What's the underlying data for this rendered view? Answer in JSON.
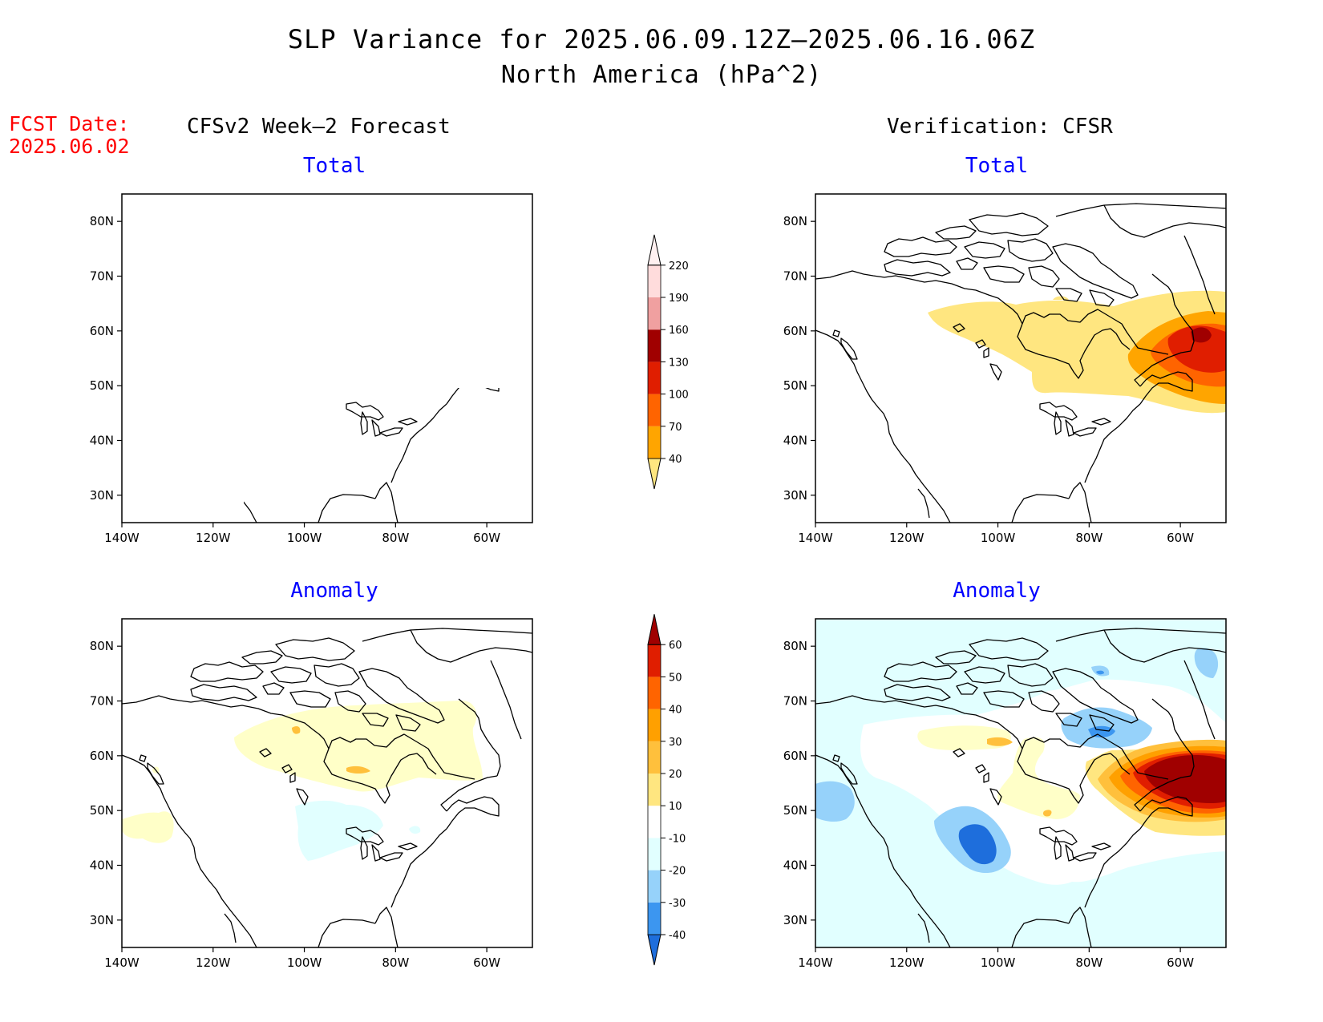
{
  "title_line1": "SLP Variance for 2025.06.09.12Z—2025.06.16.06Z",
  "title_line2": "North America (hPa^2)",
  "fcst_label": "FCST Date:",
  "fcst_date": "2025.06.02",
  "columns": {
    "left": "CFSv2 Week—2 Forecast",
    "right": "Verification: CFSR"
  },
  "panel_titles": {
    "total": "Total",
    "anomaly": "Anomaly"
  },
  "axes": {
    "lat_ticks": [
      "80N",
      "70N",
      "60N",
      "50N",
      "40N",
      "30N"
    ],
    "lon_ticks": [
      "140W",
      "120W",
      "100W",
      "80W",
      "60W"
    ]
  },
  "colorbar_total": {
    "levels": [
      "40",
      "70",
      "100",
      "130",
      "160",
      "190",
      "220"
    ],
    "colors": [
      "#ffe680",
      "#ffa500",
      "#ff6400",
      "#e01e00",
      "#a00000",
      "#f0a0a0",
      "#ffdcdc",
      "#fff0f0"
    ]
  },
  "colorbar_anomaly": {
    "levels": [
      "-40",
      "-30",
      "-20",
      "-10",
      "10",
      "20",
      "30",
      "40",
      "50",
      "60"
    ],
    "colors": [
      "#1e6edc",
      "#3c96f0",
      "#96d2fa",
      "#e1ffff",
      "#ffffff",
      "#ffe680",
      "#ffc03c",
      "#ffa000",
      "#ff6400",
      "#e01e00",
      "#a00000"
    ]
  },
  "chart_data": {
    "type": "map",
    "panels": [
      {
        "column": "CFSv2 Week—2 Forecast",
        "field": "Total"
      },
      {
        "column": "Verification: CFSR",
        "field": "Total"
      },
      {
        "column": "CFSv2 Week—2 Forecast",
        "field": "Anomaly"
      },
      {
        "column": "Verification: CFSR",
        "field": "Anomaly"
      }
    ],
    "lon_range": [
      -140,
      -50
    ],
    "lat_range": [
      25,
      85
    ]
  }
}
